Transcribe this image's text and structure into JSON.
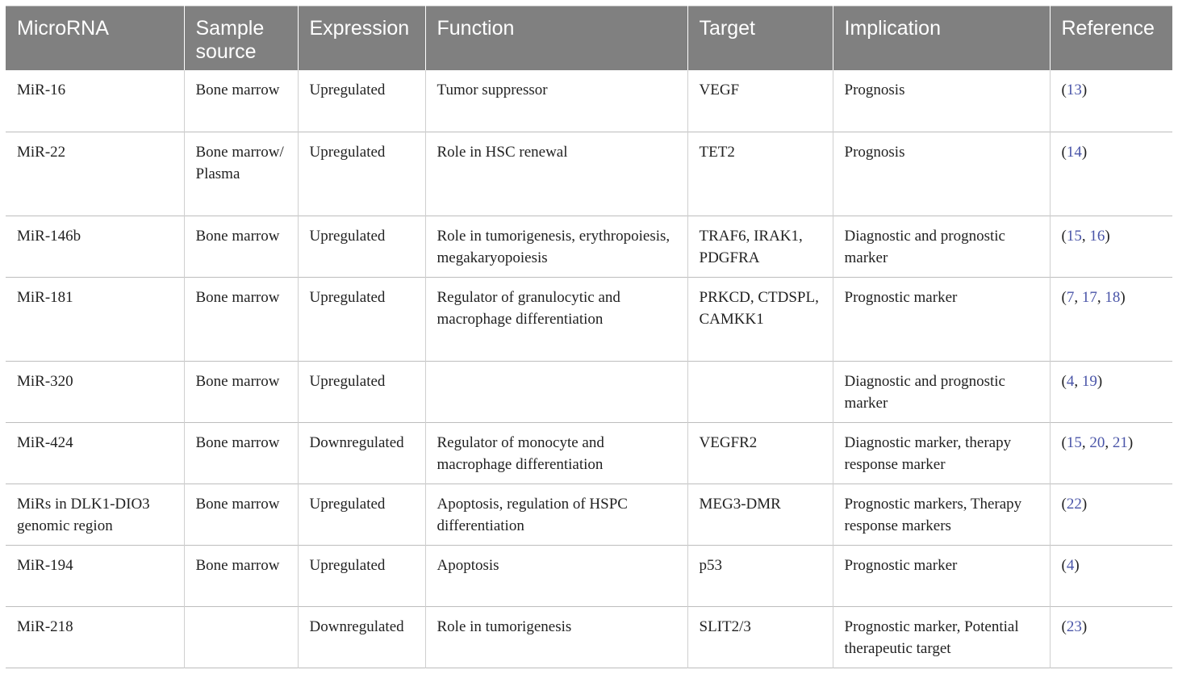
{
  "table": {
    "headers": [
      "MicroRNA",
      "Sample source",
      "Expression",
      "Function",
      "Target",
      "Implication",
      "Reference"
    ],
    "rows": [
      {
        "microrna": "MiR-16",
        "source": "Bone marrow",
        "expression": "Upregulated",
        "function": "Tumor suppressor",
        "target": "VEGF",
        "implication": "Prognosis",
        "refs": [
          "13"
        ]
      },
      {
        "microrna": "MiR-22",
        "source": "Bone marrow/ Plasma",
        "expression": "Upregulated",
        "function": "Role in HSC renewal",
        "target": "TET2",
        "implication": "Prognosis",
        "refs": [
          "14"
        ]
      },
      {
        "microrna": "MiR-146b",
        "source": "Bone marrow",
        "expression": "Upregulated",
        "function": "Role in tumorigenesis, erythropoiesis, megakaryopoiesis",
        "target": "TRAF6, IRAK1, PDGFRA",
        "implication": "Diagnostic and prognostic marker",
        "refs": [
          "15",
          "16"
        ]
      },
      {
        "microrna": "MiR-181",
        "source": "Bone marrow",
        "expression": "Upregulated",
        "function": "Regulator of granulocytic and macrophage differentiation",
        "target": "PRKCD, CTDSPL, CAMKK1",
        "implication": "Prognostic marker",
        "refs": [
          "7",
          "17",
          "18"
        ]
      },
      {
        "microrna": "MiR-320",
        "source": "Bone marrow",
        "expression": "Upregulated",
        "function": "",
        "target": "",
        "implication": "Diagnostic and prognostic marker",
        "refs": [
          "4",
          "19"
        ]
      },
      {
        "microrna": "MiR-424",
        "source": "Bone marrow",
        "expression": "Downregulated",
        "function": "Regulator of monocyte and macrophage differentiation",
        "target": "VEGFR2",
        "implication": "Diagnostic marker, therapy response marker",
        "refs": [
          "15",
          "20",
          "21"
        ]
      },
      {
        "microrna": "MiRs in DLK1-DIO3 genomic region",
        "source": "Bone marrow",
        "expression": "Upregulated",
        "function": "Apoptosis, regulation of HSPC differentiation",
        "target": "MEG3-DMR",
        "implication": "Prognostic markers, Therapy response markers",
        "refs": [
          "22"
        ]
      },
      {
        "microrna": "MiR-194",
        "source": "Bone marrow",
        "expression": "Upregulated",
        "function": "Apoptosis",
        "target": "p53",
        "implication": "Prognostic marker",
        "refs": [
          "4"
        ]
      },
      {
        "microrna": "MiR-218",
        "source": "",
        "expression": "Downregulated",
        "function": "Role in tumorigenesis",
        "target": "SLIT2/3",
        "implication": "Prognostic marker, Potential therapeutic target",
        "refs": [
          "23"
        ]
      }
    ]
  },
  "colors": {
    "header_bg": "#808080",
    "header_text": "#ffffff",
    "link": "#4a55a8",
    "border": "#bdbdbd"
  }
}
